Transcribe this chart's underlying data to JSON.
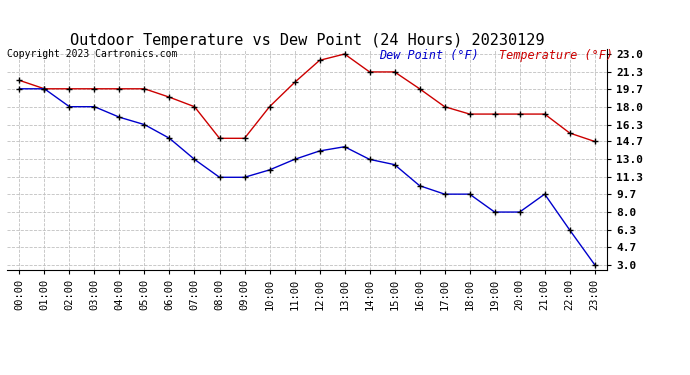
{
  "title": "Outdoor Temperature vs Dew Point (24 Hours) 20230129",
  "copyright": "Copyright 2023 Cartronics.com",
  "legend_dew": "Dew Point (°F)",
  "legend_temp": "Temperature (°F)",
  "hours": [
    "00:00",
    "01:00",
    "02:00",
    "03:00",
    "04:00",
    "05:00",
    "06:00",
    "07:00",
    "08:00",
    "09:00",
    "10:00",
    "11:00",
    "12:00",
    "13:00",
    "14:00",
    "15:00",
    "16:00",
    "17:00",
    "18:00",
    "19:00",
    "20:00",
    "21:00",
    "22:00",
    "23:00"
  ],
  "temperature": [
    20.5,
    19.7,
    19.7,
    19.7,
    19.7,
    19.7,
    18.9,
    18.0,
    15.0,
    15.0,
    18.0,
    20.3,
    22.4,
    23.0,
    21.3,
    21.3,
    19.7,
    18.0,
    17.3,
    17.3,
    17.3,
    17.3,
    15.5,
    14.7
  ],
  "dew_point": [
    19.7,
    19.7,
    18.0,
    18.0,
    17.0,
    16.3,
    15.0,
    13.0,
    11.3,
    11.3,
    12.0,
    13.0,
    13.8,
    14.2,
    13.0,
    12.5,
    10.5,
    9.7,
    9.7,
    8.0,
    8.0,
    9.7,
    6.3,
    3.0
  ],
  "temp_color": "#cc0000",
  "dew_color": "#0000cc",
  "background_color": "#ffffff",
  "grid_color": "#c0c0c0",
  "ylim_min": 2.5,
  "ylim_max": 23.5,
  "yticks": [
    3.0,
    4.7,
    6.3,
    8.0,
    9.7,
    11.3,
    13.0,
    14.7,
    16.3,
    18.0,
    19.7,
    21.3,
    23.0
  ],
  "title_fontsize": 11,
  "tick_fontsize": 7.5,
  "legend_fontsize": 8.5,
  "copyright_fontsize": 7
}
